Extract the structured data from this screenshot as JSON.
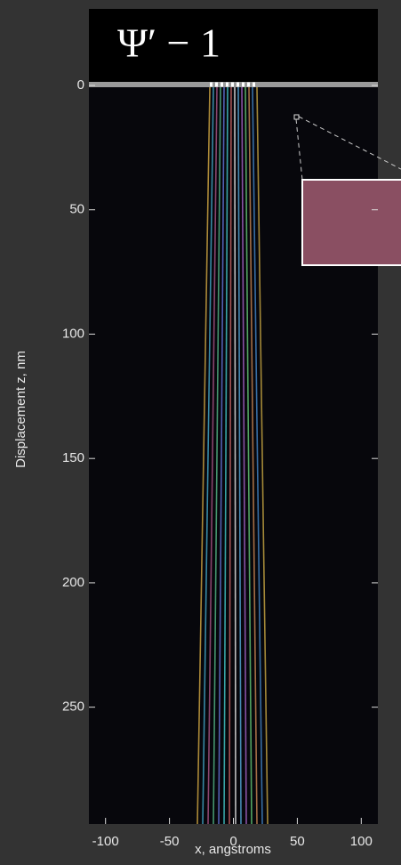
{
  "chart_data": {
    "type": "image",
    "title": "Ψ′ − 1",
    "xlabel": "x, angstroms",
    "ylabel": "Displacement z, nm",
    "xlim": [
      -113,
      113
    ],
    "xticks": [
      -100,
      -50,
      0,
      50,
      100
    ],
    "ylim": [
      0,
      297
    ],
    "yticks": [
      0,
      50,
      100,
      150,
      200,
      250
    ]
  }
}
